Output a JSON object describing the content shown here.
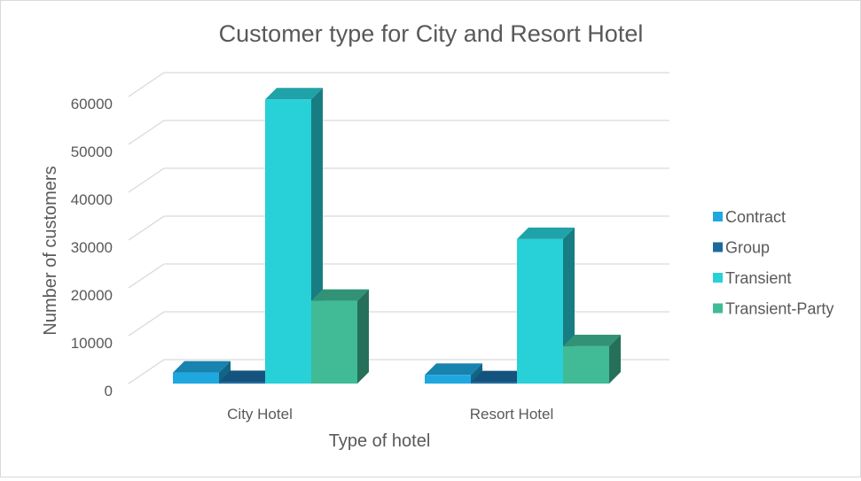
{
  "chart_data": {
    "type": "bar",
    "title": "Customer type for City and Resort Hotel",
    "xlabel": "Type of hotel",
    "ylabel": "Number of customers",
    "categories": [
      "City Hotel",
      "Resort Hotel"
    ],
    "yticks": [
      "0",
      "10000",
      "20000",
      "30000",
      "40000",
      "50000",
      "60000"
    ],
    "ylim": [
      0,
      60000
    ],
    "grid": true,
    "legend_position": "right",
    "series": [
      {
        "name": "Contract",
        "values": [
          2300,
          1800
        ],
        "color": "#1fa8df"
      },
      {
        "name": "Group",
        "values": [
          300,
          250
        ],
        "color": "#1a6aa0"
      },
      {
        "name": "Transient",
        "values": [
          59400,
          30200
        ],
        "color": "#28d0d8"
      },
      {
        "name": "Transient-Party",
        "values": [
          17300,
          7800
        ],
        "color": "#40bb96"
      }
    ]
  }
}
